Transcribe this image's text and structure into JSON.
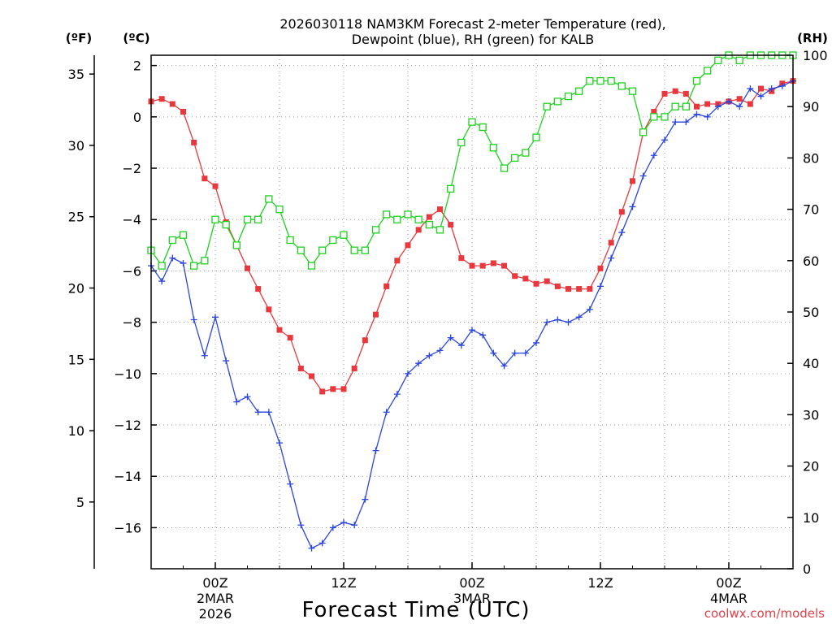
{
  "chart_data": {
    "type": "line",
    "title_line1": "2026030118 NAM3KM Forecast 2-meter Temperature (red),",
    "title_line2": "Dewpoint (blue), RH (green) for KALB",
    "xlabel": "Forecast Time (UTC)",
    "credit": "coolwx.com/models",
    "left_f_label": "(ºF)",
    "left_c_label": "(ºC)",
    "right_rh_label": "(RH)",
    "x_range": [
      -6,
      54
    ],
    "c_range": [
      -17.6,
      2.4
    ],
    "rh_range": [
      0,
      100
    ],
    "c_ticks": [
      2,
      0,
      -2,
      -4,
      -6,
      -8,
      -10,
      -12,
      -14,
      -16
    ],
    "c_tick_labels": [
      "2",
      "0",
      "−2",
      "−4",
      "−6",
      "−8",
      "−10",
      "−12",
      "−14",
      "−16"
    ],
    "f_ticks": [
      35,
      30,
      25,
      20,
      15,
      10,
      5
    ],
    "f_tick_labels": [
      "35",
      "30",
      "25",
      "20",
      "15",
      "10",
      "5"
    ],
    "rh_ticks": [
      100,
      90,
      80,
      70,
      60,
      50,
      40,
      30,
      20,
      10,
      0
    ],
    "rh_tick_labels": [
      "100",
      "90",
      "80",
      "70",
      "60",
      "50",
      "40",
      "30",
      "20",
      "10",
      "0"
    ],
    "x_ticks": [
      {
        "hour": 0,
        "label": "00Z",
        "date": "2MAR",
        "year": "2026"
      },
      {
        "hour": 12,
        "label": "12Z",
        "date": "",
        "year": ""
      },
      {
        "hour": 24,
        "label": "00Z",
        "date": "3MAR",
        "year": ""
      },
      {
        "hour": 36,
        "label": "12Z",
        "date": "",
        "year": ""
      },
      {
        "hour": 48,
        "label": "00Z",
        "date": "4MAR",
        "year": ""
      }
    ],
    "hours": [
      -6,
      -5,
      -4,
      -3,
      -2,
      -1,
      0,
      1,
      2,
      3,
      4,
      5,
      6,
      7,
      8,
      9,
      10,
      11,
      12,
      13,
      14,
      15,
      16,
      17,
      18,
      19,
      20,
      21,
      22,
      23,
      24,
      25,
      26,
      27,
      28,
      29,
      30,
      31,
      32,
      33,
      34,
      35,
      36,
      37,
      38,
      39,
      40,
      41,
      42,
      43,
      44,
      45,
      46,
      47,
      48,
      49,
      50,
      51,
      52,
      53,
      54
    ],
    "series": [
      {
        "name": "2-meter Temperature",
        "unit": "°C",
        "axis": "celsius",
        "color": "#e8383d",
        "marker": "filled-square",
        "values": [
          0.6,
          0.7,
          0.5,
          0.2,
          -1.0,
          -2.4,
          -2.7,
          -4.1,
          -5.0,
          -5.9,
          -6.7,
          -7.5,
          -8.3,
          -8.6,
          -9.8,
          -10.1,
          -10.7,
          -10.6,
          -10.6,
          -9.8,
          -8.7,
          -7.7,
          -6.6,
          -5.6,
          -5.0,
          -4.4,
          -3.9,
          -3.6,
          -4.2,
          -5.5,
          -5.8,
          -5.8,
          -5.7,
          -5.8,
          -6.2,
          -6.3,
          -6.5,
          -6.4,
          -6.6,
          -6.7,
          -6.7,
          -6.7,
          -5.9,
          -4.9,
          -3.7,
          -2.5,
          -0.6,
          0.2,
          0.9,
          1.0,
          0.9,
          0.4,
          0.5,
          0.5,
          0.6,
          0.7,
          0.5,
          1.1,
          1.0,
          1.3,
          1.4
        ]
      },
      {
        "name": "Dewpoint",
        "unit": "°C",
        "axis": "celsius",
        "color": "#2a45dd",
        "marker": "plus",
        "values": [
          -5.8,
          -6.4,
          -5.5,
          -5.7,
          -7.9,
          -9.3,
          -7.8,
          -9.5,
          -11.1,
          -10.9,
          -11.5,
          -11.5,
          -12.7,
          -14.3,
          -15.9,
          -16.8,
          -16.6,
          -16.0,
          -15.8,
          -15.9,
          -14.9,
          -13.0,
          -11.5,
          -10.8,
          -10.0,
          -9.6,
          -9.3,
          -9.1,
          -8.6,
          -8.9,
          -8.3,
          -8.5,
          -9.2,
          -9.7,
          -9.2,
          -9.2,
          -8.8,
          -8.0,
          -7.9,
          -8.0,
          -7.8,
          -7.5,
          -6.6,
          -5.5,
          -4.5,
          -3.5,
          -2.3,
          -1.5,
          -0.9,
          -0.2,
          -0.2,
          0.1,
          0.0,
          0.4,
          0.6,
          0.4,
          1.1,
          0.8,
          1.1,
          1.2,
          1.4
        ]
      },
      {
        "name": "RH",
        "unit": "%",
        "axis": "rh",
        "color": "#1fd11f",
        "marker": "open-square",
        "values": [
          62,
          59,
          64,
          65,
          59,
          60,
          68,
          67,
          63,
          68,
          68,
          72,
          70,
          64,
          62,
          59,
          62,
          64,
          65,
          62,
          62,
          66,
          69,
          68,
          69,
          68,
          67,
          66,
          74,
          83,
          87,
          86,
          82,
          78,
          80,
          81,
          84,
          90,
          91,
          92,
          93,
          95,
          95,
          95,
          94,
          93,
          85,
          88,
          88,
          90,
          90,
          95,
          97,
          99,
          100,
          99,
          100,
          100,
          100,
          100,
          100
        ]
      }
    ]
  }
}
